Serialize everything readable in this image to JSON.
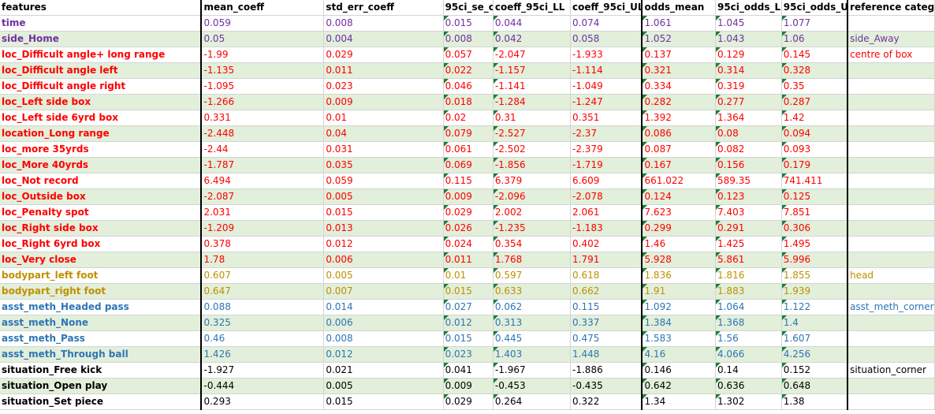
{
  "headers": [
    "features",
    "mean_coeff",
    "std_err_coeff",
    "95ci_se_coeff",
    "coeff_95ci_LL",
    "coeff_95ci_UL",
    "odds_mean",
    "95ci_odds_LL",
    "95ci_odds_UL",
    "reference categry"
  ],
  "rows": [
    {
      "cells": [
        "time",
        "0.059",
        "0.008",
        "0.015",
        "0.044",
        "0.074",
        "1.061",
        "1.045",
        "1.077",
        ""
      ],
      "color": "purple"
    },
    {
      "cells": [
        "side_Home",
        "0.05",
        "0.004",
        "0.008",
        "0.042",
        "0.058",
        "1.052",
        "1.043",
        "1.06",
        "side_Away"
      ],
      "color": "purple"
    },
    {
      "cells": [
        "loc_Difficult angle+ long range",
        "-1.99",
        "0.029",
        "0.057",
        "-2.047",
        "-1.933",
        "0.137",
        "0.129",
        "0.145",
        "centre of box"
      ],
      "color": "red"
    },
    {
      "cells": [
        "loc_Difficult angle left",
        "-1.135",
        "0.011",
        "0.022",
        "-1.157",
        "-1.114",
        "0.321",
        "0.314",
        "0.328",
        ""
      ],
      "color": "red"
    },
    {
      "cells": [
        "loc_Difficult angle right",
        "-1.095",
        "0.023",
        "0.046",
        "-1.141",
        "-1.049",
        "0.334",
        "0.319",
        "0.35",
        ""
      ],
      "color": "red"
    },
    {
      "cells": [
        "loc_Left side box",
        "-1.266",
        "0.009",
        "0.018",
        "-1.284",
        "-1.247",
        "0.282",
        "0.277",
        "0.287",
        ""
      ],
      "color": "red"
    },
    {
      "cells": [
        "loc_Left side 6yrd box",
        "0.331",
        "0.01",
        "0.02",
        "0.31",
        "0.351",
        "1.392",
        "1.364",
        "1.42",
        ""
      ],
      "color": "red"
    },
    {
      "cells": [
        "location_Long range",
        "-2.448",
        "0.04",
        "0.079",
        "-2.527",
        "-2.37",
        "0.086",
        "0.08",
        "0.094",
        ""
      ],
      "color": "red"
    },
    {
      "cells": [
        "loc_more 35yrds",
        "-2.44",
        "0.031",
        "0.061",
        "-2.502",
        "-2.379",
        "0.087",
        "0.082",
        "0.093",
        ""
      ],
      "color": "red"
    },
    {
      "cells": [
        "loc_More 40yrds",
        "-1.787",
        "0.035",
        "0.069",
        "-1.856",
        "-1.719",
        "0.167",
        "0.156",
        "0.179",
        ""
      ],
      "color": "red"
    },
    {
      "cells": [
        "loc_Not record",
        "6.494",
        "0.059",
        "0.115",
        "6.379",
        "6.609",
        "661.022",
        "589.35",
        "741.411",
        ""
      ],
      "color": "red"
    },
    {
      "cells": [
        "loc_Outside box",
        "-2.087",
        "0.005",
        "0.009",
        "-2.096",
        "-2.078",
        "0.124",
        "0.123",
        "0.125",
        ""
      ],
      "color": "red"
    },
    {
      "cells": [
        "loc_Penalty spot",
        "2.031",
        "0.015",
        "0.029",
        "2.002",
        "2.061",
        "7.623",
        "7.403",
        "7.851",
        ""
      ],
      "color": "red"
    },
    {
      "cells": [
        "loc_Right side box",
        "-1.209",
        "0.013",
        "0.026",
        "-1.235",
        "-1.183",
        "0.299",
        "0.291",
        "0.306",
        ""
      ],
      "color": "red"
    },
    {
      "cells": [
        "loc_Right 6yrd box",
        "0.378",
        "0.012",
        "0.024",
        "0.354",
        "0.402",
        "1.46",
        "1.425",
        "1.495",
        ""
      ],
      "color": "red"
    },
    {
      "cells": [
        "loc_Very close",
        "1.78",
        "0.006",
        "0.011",
        "1.768",
        "1.791",
        "5.928",
        "5.861",
        "5.996",
        ""
      ],
      "color": "red"
    },
    {
      "cells": [
        "bodypart_left foot",
        "0.607",
        "0.005",
        "0.01",
        "0.597",
        "0.618",
        "1.836",
        "1.816",
        "1.855",
        "head"
      ],
      "color": "gold"
    },
    {
      "cells": [
        "bodypart_right foot",
        "0.647",
        "0.007",
        "0.015",
        "0.633",
        "0.662",
        "1.91",
        "1.883",
        "1.939",
        ""
      ],
      "color": "gold"
    },
    {
      "cells": [
        "asst_meth_Headed pass",
        "0.088",
        "0.014",
        "0.027",
        "0.062",
        "0.115",
        "1.092",
        "1.064",
        "1.122",
        "asst_meth_corner"
      ],
      "color": "blue"
    },
    {
      "cells": [
        "asst_meth_None",
        "0.325",
        "0.006",
        "0.012",
        "0.313",
        "0.337",
        "1.384",
        "1.368",
        "1.4",
        ""
      ],
      "color": "blue"
    },
    {
      "cells": [
        "asst_meth_Pass",
        "0.46",
        "0.008",
        "0.015",
        "0.445",
        "0.475",
        "1.583",
        "1.56",
        "1.607",
        ""
      ],
      "color": "blue"
    },
    {
      "cells": [
        "asst_meth_Through ball",
        "1.426",
        "0.012",
        "0.023",
        "1.403",
        "1.448",
        "4.16",
        "4.066",
        "4.256",
        ""
      ],
      "color": "blue"
    },
    {
      "cells": [
        "situation_Free kick",
        "-1.927",
        "0.021",
        "0.041",
        "-1.967",
        "-1.886",
        "0.146",
        "0.14",
        "0.152",
        "situation_corner"
      ],
      "color": "black"
    },
    {
      "cells": [
        "situation_Open play",
        "-0.444",
        "0.005",
        "0.009",
        "-0.453",
        "-0.435",
        "0.642",
        "0.636",
        "0.648",
        ""
      ],
      "color": "black"
    },
    {
      "cells": [
        "situation_Set piece",
        "0.293",
        "0.015",
        "0.029",
        "0.264",
        "0.322",
        "1.34",
        "1.302",
        "1.38",
        ""
      ],
      "color": "black"
    }
  ]
}
